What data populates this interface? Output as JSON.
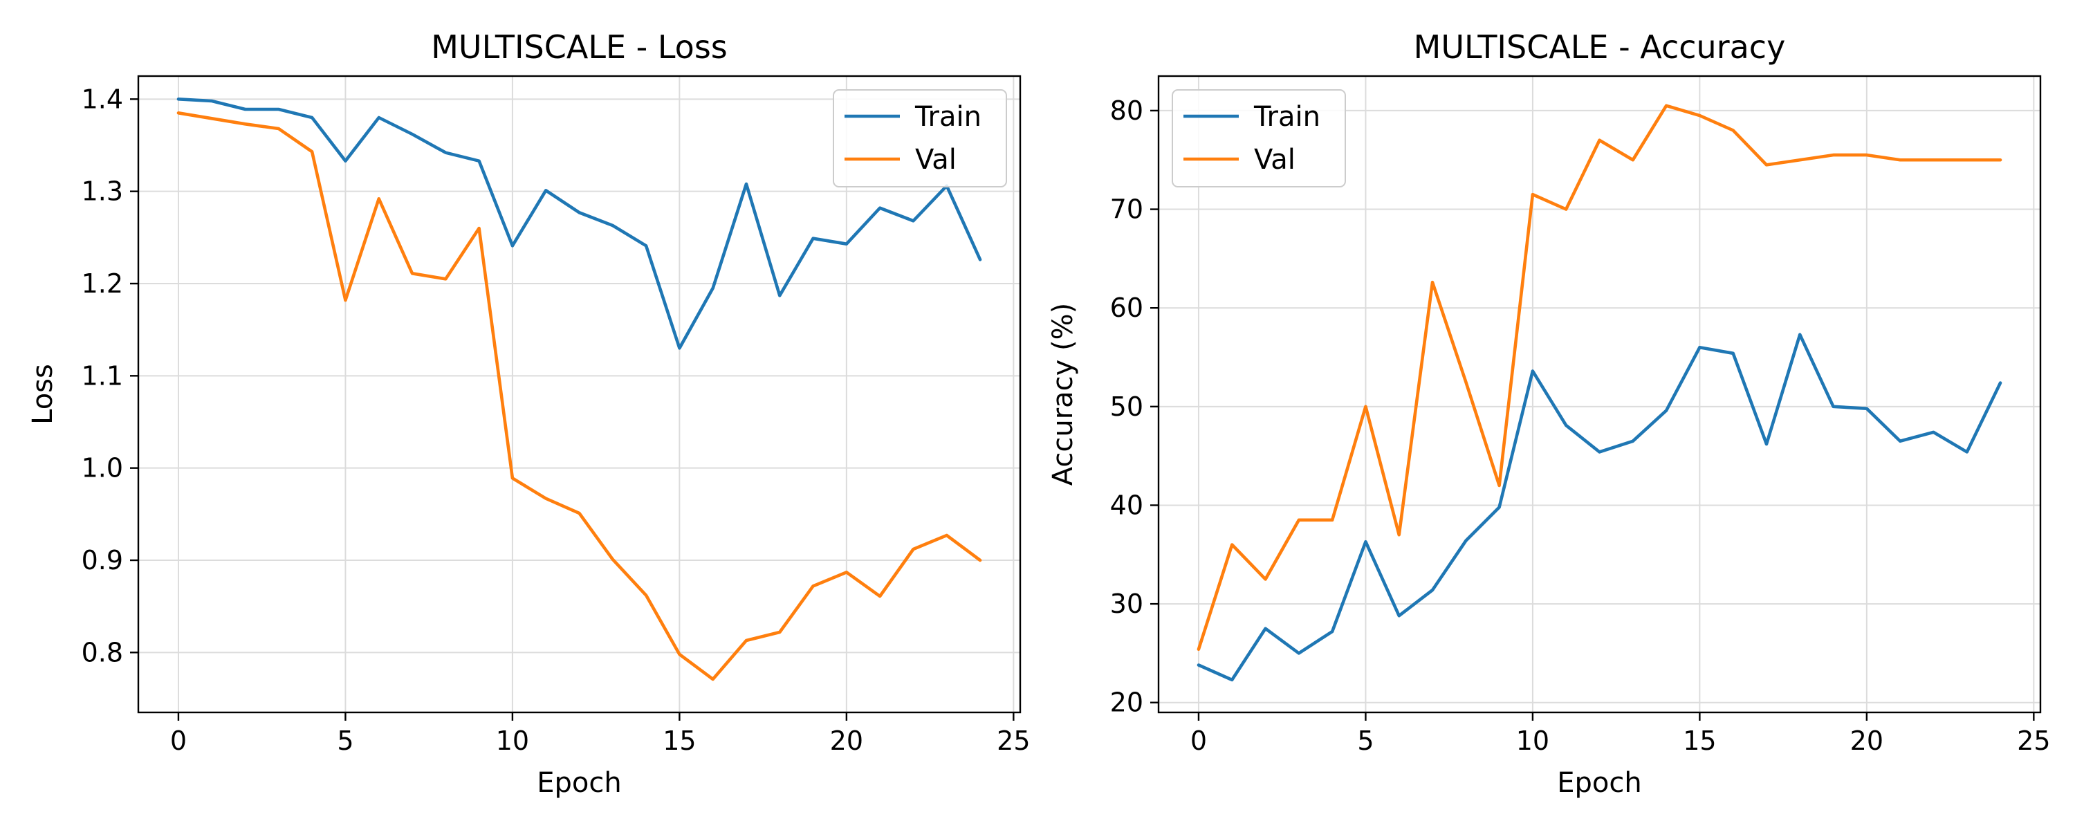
{
  "figure": {
    "background": "#ffffff"
  },
  "chart_data": [
    {
      "type": "line",
      "title": "MULTISCALE - Loss",
      "xlabel": "Epoch",
      "ylabel": "Loss",
      "xlim": [
        -1.2,
        25.2
      ],
      "ylim": [
        0.735,
        1.425
      ],
      "xticks": [
        0,
        5,
        10,
        15,
        20,
        25
      ],
      "yticks": [
        0.8,
        0.9,
        1.0,
        1.1,
        1.2,
        1.3,
        1.4
      ],
      "yticklabels": [
        "0.8",
        "0.9",
        "1.0",
        "1.1",
        "1.2",
        "1.3",
        "1.4"
      ],
      "grid": true,
      "legend_position": "top-right",
      "x": [
        0,
        1,
        2,
        3,
        4,
        5,
        6,
        7,
        8,
        9,
        10,
        11,
        12,
        13,
        14,
        15,
        16,
        17,
        18,
        19,
        20,
        21,
        22,
        23,
        24
      ],
      "series": [
        {
          "name": "Train",
          "color": "#1f77b4",
          "values": [
            1.4,
            1.398,
            1.389,
            1.389,
            1.38,
            1.333,
            1.38,
            1.362,
            1.342,
            1.333,
            1.241,
            1.301,
            1.277,
            1.263,
            1.241,
            1.13,
            1.195,
            1.308,
            1.187,
            1.249,
            1.243,
            1.282,
            1.268,
            1.306,
            1.226
          ]
        },
        {
          "name": "Val",
          "color": "#ff7f0e",
          "values": [
            1.385,
            1.379,
            1.373,
            1.368,
            1.343,
            1.182,
            1.292,
            1.211,
            1.205,
            1.26,
            0.989,
            0.967,
            0.951,
            0.901,
            0.862,
            0.798,
            0.771,
            0.813,
            0.822,
            0.872,
            0.887,
            0.861,
            0.912,
            0.927,
            0.9
          ]
        }
      ]
    },
    {
      "type": "line",
      "title": "MULTISCALE - Accuracy",
      "xlabel": "Epoch",
      "ylabel": "Accuracy (%)",
      "xlim": [
        -1.2,
        25.2
      ],
      "ylim": [
        19.0,
        83.5
      ],
      "xticks": [
        0,
        5,
        10,
        15,
        20,
        25
      ],
      "yticks": [
        20,
        30,
        40,
        50,
        60,
        70,
        80
      ],
      "yticklabels": [
        "20",
        "30",
        "40",
        "50",
        "60",
        "70",
        "80"
      ],
      "grid": true,
      "legend_position": "top-left",
      "x": [
        0,
        1,
        2,
        3,
        4,
        5,
        6,
        7,
        8,
        9,
        10,
        11,
        12,
        13,
        14,
        15,
        16,
        17,
        18,
        19,
        20,
        21,
        22,
        23,
        24
      ],
      "series": [
        {
          "name": "Train",
          "color": "#1f77b4",
          "values": [
            23.8,
            22.3,
            27.5,
            25.0,
            27.2,
            36.3,
            28.8,
            31.4,
            36.4,
            39.8,
            53.6,
            48.1,
            45.4,
            46.5,
            49.6,
            56.0,
            55.4,
            46.2,
            57.3,
            50.0,
            49.8,
            46.5,
            47.4,
            45.4,
            52.4
          ]
        },
        {
          "name": "Val",
          "color": "#ff7f0e",
          "values": [
            25.4,
            36.0,
            32.5,
            38.5,
            38.5,
            50.0,
            37.0,
            62.6,
            52.5,
            42.0,
            71.5,
            70.0,
            77.0,
            75.0,
            80.5,
            79.5,
            78.0,
            74.5,
            75.0,
            75.5,
            75.5,
            75.0,
            75.0,
            75.0,
            75.0
          ]
        }
      ]
    }
  ]
}
